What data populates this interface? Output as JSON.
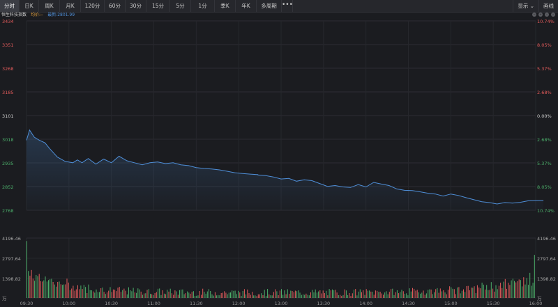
{
  "toolbar": {
    "tabs": [
      "分时",
      "日K",
      "周K",
      "月K",
      "120分",
      "60分",
      "30分",
      "15分",
      "5分",
      "1分",
      "季K",
      "年K",
      "多周期"
    ],
    "active_tab": "分时",
    "more": "•••",
    "display": "显示 ⌄",
    "draw": "画线"
  },
  "info": {
    "name": "恒生科技指数",
    "avg": "均价:--",
    "latest": "最新:2801.99"
  },
  "controls": [
    "minus-icon",
    "plus-icon",
    "left-arrow-icon",
    "right-arrow-icon"
  ],
  "colors": {
    "up": "#e25b5b",
    "down": "#4cae6a",
    "flat": "#cfcfcf",
    "line": "#4f8fd8",
    "avg": "#e6a23c"
  },
  "chart_data": [
    {
      "type": "line",
      "title": "恒生科技指数",
      "grid": true,
      "ylim": [
        2768,
        3434
      ],
      "prev_close": 3101,
      "price_ticks": [
        "3434",
        "3351",
        "3268",
        "3185",
        "3101",
        "3018",
        "2935",
        "2852",
        "2768"
      ],
      "pct_ticks": [
        "10.74%",
        "8.05%",
        "5.37%",
        "2.68%",
        "0.00%",
        "2.68%",
        "5.37%",
        "8.05%",
        "10.74%"
      ],
      "x_ticks": [
        "09:30",
        "10:00",
        "10:30",
        "11:00",
        "11:30",
        "12:00",
        "13:00",
        "13:30",
        "14:00",
        "14:30",
        "15:00",
        "15:30",
        "16:00"
      ],
      "x": [
        "09:30",
        "09:32",
        "09:35",
        "09:38",
        "09:42",
        "09:45",
        "09:50",
        "09:55",
        "10:00",
        "10:03",
        "10:06",
        "10:10",
        "10:15",
        "10:20",
        "10:25",
        "10:30",
        "10:35",
        "10:40",
        "10:45",
        "10:50",
        "10:55",
        "11:00",
        "11:05",
        "11:10",
        "11:15",
        "11:20",
        "11:25",
        "11:30",
        "11:35",
        "11:40",
        "11:45",
        "11:50",
        "11:55",
        "12:00",
        "13:00",
        "13:05",
        "13:10",
        "13:15",
        "13:20",
        "13:25",
        "13:30",
        "13:35",
        "13:40",
        "13:45",
        "13:50",
        "13:55",
        "14:00",
        "14:05",
        "14:10",
        "14:15",
        "14:20",
        "14:25",
        "14:30",
        "14:35",
        "14:40",
        "14:45",
        "14:50",
        "14:55",
        "15:00",
        "15:05",
        "15:10",
        "15:15",
        "15:20",
        "15:25",
        "15:30",
        "15:35",
        "15:40",
        "15:45",
        "15:50",
        "15:55",
        "16:00",
        "16:05"
      ],
      "values": [
        3014,
        3050,
        3025,
        3015,
        3005,
        2985,
        2955,
        2940,
        2935,
        2945,
        2935,
        2950,
        2930,
        2948,
        2935,
        2958,
        2942,
        2935,
        2928,
        2935,
        2938,
        2932,
        2935,
        2928,
        2925,
        2918,
        2915,
        2913,
        2910,
        2905,
        2900,
        2897,
        2895,
        2893,
        2892,
        2890,
        2885,
        2878,
        2880,
        2870,
        2875,
        2872,
        2862,
        2852,
        2855,
        2850,
        2848,
        2858,
        2850,
        2866,
        2860,
        2855,
        2843,
        2838,
        2837,
        2833,
        2828,
        2825,
        2818,
        2825,
        2820,
        2812,
        2805,
        2798,
        2795,
        2790,
        2795,
        2793,
        2796,
        2801,
        2802,
        2802
      ],
      "volume_ticks": [
        "4196.46",
        "2797.64",
        "1398.82"
      ],
      "volume_unit": "万",
      "volume_max": 4196.46
    }
  ]
}
